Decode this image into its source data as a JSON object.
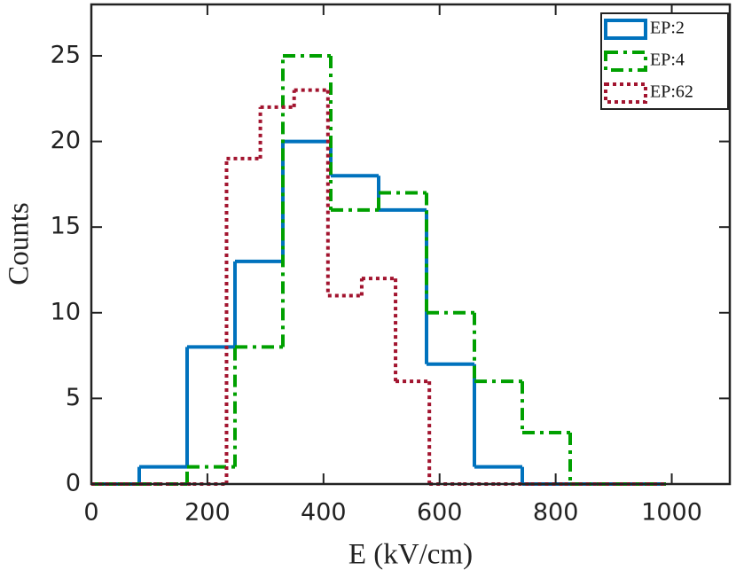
{
  "chart_data": {
    "type": "histogram",
    "xlabel": "E (kV/cm)",
    "ylabel": "Counts",
    "xlim": [
      0,
      1100
    ],
    "xticks": [
      0,
      200,
      400,
      600,
      800,
      1000
    ],
    "ylim": [
      0,
      28
    ],
    "yticks": [
      0,
      5,
      10,
      15,
      20,
      25
    ],
    "legend": "upper right",
    "series": [
      {
        "name": "EP:2",
        "color": "#0072bd",
        "style": "solid",
        "bins": [
          0,
          82.5,
          165,
          247.5,
          330,
          412.5,
          495,
          577.5,
          660,
          742.5,
          825,
          907.5,
          990
        ],
        "values": [
          0,
          1,
          8,
          13,
          20,
          18,
          16,
          7,
          1,
          0,
          0,
          0
        ]
      },
      {
        "name": "EP:4",
        "color": "#00a000",
        "style": "dashdot",
        "bins": [
          0,
          82.5,
          165,
          247.5,
          330,
          412.5,
          495,
          577.5,
          660,
          742.5,
          825,
          907.5,
          990
        ],
        "values": [
          0,
          0,
          1,
          8,
          25,
          16,
          17,
          10,
          6,
          3,
          0,
          0
        ]
      },
      {
        "name": "EP:62",
        "color": "#a2142f",
        "style": "dotted",
        "bins": [
          0,
          58.24,
          116.47,
          174.71,
          232.94,
          291.18,
          349.41,
          407.65,
          465.88,
          524.12,
          582.35,
          640.59,
          698.82,
          757.06,
          815.29,
          873.53,
          931.76,
          990
        ],
        "values": [
          0,
          0,
          0,
          0,
          19,
          22,
          23,
          11,
          12,
          6,
          0,
          0,
          0,
          0,
          0,
          0,
          0
        ]
      }
    ]
  }
}
